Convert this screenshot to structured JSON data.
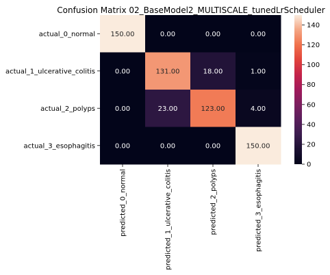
{
  "chart_data": {
    "type": "heatmap",
    "title": "Confusion Matrix 02_BaseModel2_MULTISCALE_tunedLrScheduler",
    "row_labels": [
      "actual_0_normal",
      "actual_1_ulcerative_colitis",
      "actual_2_polyps",
      "actual_3_esophagitis"
    ],
    "column_labels": [
      "predicted_0_normal",
      "predicted_1_ulcerative_colitis",
      "predicted_2_polyps",
      "predicted_3_esophagitis"
    ],
    "values": [
      [
        150,
        0,
        0,
        0
      ],
      [
        0,
        131,
        18,
        1
      ],
      [
        0,
        23,
        123,
        4
      ],
      [
        0,
        0,
        0,
        150
      ]
    ],
    "value_format": "2 decimals",
    "colormap": "rocket",
    "colorbar": {
      "range": [
        0,
        150
      ],
      "ticks": [
        0,
        20,
        40,
        60,
        80,
        100,
        120,
        140
      ]
    },
    "grid": false
  }
}
